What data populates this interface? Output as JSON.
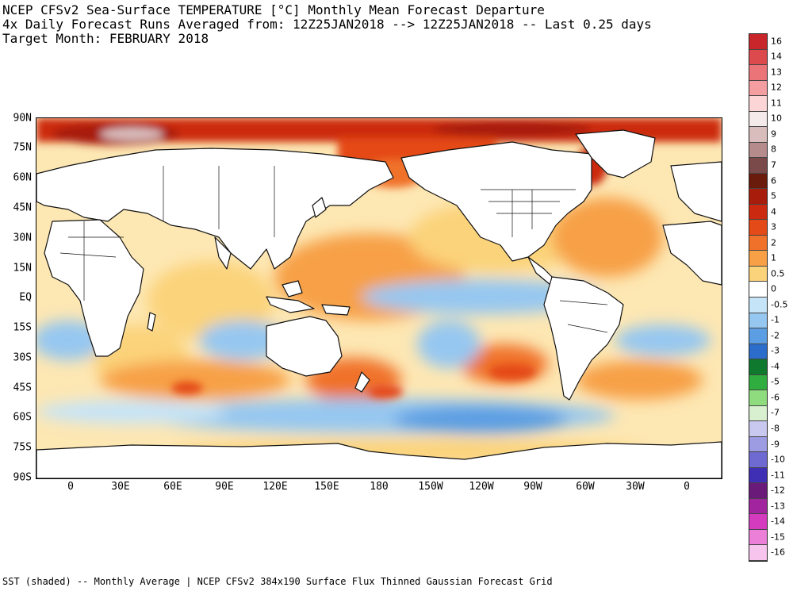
{
  "header": {
    "line1": "NCEP CFSv2 Sea-Surface TEMPERATURE [°C] Monthly Mean Forecast Departure",
    "line2": "4x Daily Forecast Runs Averaged from: 12Z25JAN2018 --> 12Z25JAN2018 -- Last 0.25 days",
    "line3": "Target Month: FEBRUARY 2018"
  },
  "map": {
    "lat_labels": [
      "90N",
      "75N",
      "60N",
      "45N",
      "30N",
      "15N",
      "EQ",
      "15S",
      "30S",
      "45S",
      "60S",
      "75S",
      "90S"
    ],
    "lon_labels": [
      "0",
      "30E",
      "60E",
      "90E",
      "120E",
      "150E",
      "180",
      "150W",
      "120W",
      "90W",
      "60W",
      "30W",
      "0"
    ],
    "land_color": "#ffffff",
    "ocean_neutral_color": "#ffffff"
  },
  "colorbar": {
    "levels": [
      {
        "label": "16",
        "color": "#c8262b"
      },
      {
        "label": "14",
        "color": "#dc4a4e"
      },
      {
        "label": "13",
        "color": "#eb7478"
      },
      {
        "label": "12",
        "color": "#f59ea1"
      },
      {
        "label": "11",
        "color": "#fcd6d6"
      },
      {
        "label": "10",
        "color": "#f5eaea"
      },
      {
        "label": "9",
        "color": "#d9bcbc"
      },
      {
        "label": "8",
        "color": "#b58b8b"
      },
      {
        "label": "7",
        "color": "#7a4a4a"
      },
      {
        "label": "6",
        "color": "#6a1b0c"
      },
      {
        "label": "5",
        "color": "#a81c0b"
      },
      {
        "label": "4",
        "color": "#cc2a10"
      },
      {
        "label": "3",
        "color": "#e44a17"
      },
      {
        "label": "2",
        "color": "#f0722a"
      },
      {
        "label": "1",
        "color": "#f7a046"
      },
      {
        "label": "0.5",
        "color": "#fbd37a"
      },
      {
        "label": "0",
        "color": "#ffffff"
      },
      {
        "label": "-0.5",
        "color": "#c6e4f8"
      },
      {
        "label": "-1",
        "color": "#96c7f0"
      },
      {
        "label": "-2",
        "color": "#5b9ee3"
      },
      {
        "label": "-3",
        "color": "#2c6ccb"
      },
      {
        "label": "-4",
        "color": "#0f7a2e"
      },
      {
        "label": "-5",
        "color": "#2fae3f"
      },
      {
        "label": "-6",
        "color": "#8fdc7e"
      },
      {
        "label": "-7",
        "color": "#d8f0cf"
      },
      {
        "label": "-8",
        "color": "#c9c8ef"
      },
      {
        "label": "-9",
        "color": "#9d9be2"
      },
      {
        "label": "-10",
        "color": "#6f6ad2"
      },
      {
        "label": "-11",
        "color": "#3f2fb4"
      },
      {
        "label": "-12",
        "color": "#6a1b7a"
      },
      {
        "label": "-13",
        "color": "#a2249e"
      },
      {
        "label": "-14",
        "color": "#d43bbf"
      },
      {
        "label": "-15",
        "color": "#ec7fd8"
      },
      {
        "label": "-16",
        "color": "#f7c4ee"
      }
    ]
  },
  "footer": "SST (shaded) -- Monthly Average | NCEP CFSv2 384x190 Surface Flux Thinned Gaussian Forecast Grid"
}
